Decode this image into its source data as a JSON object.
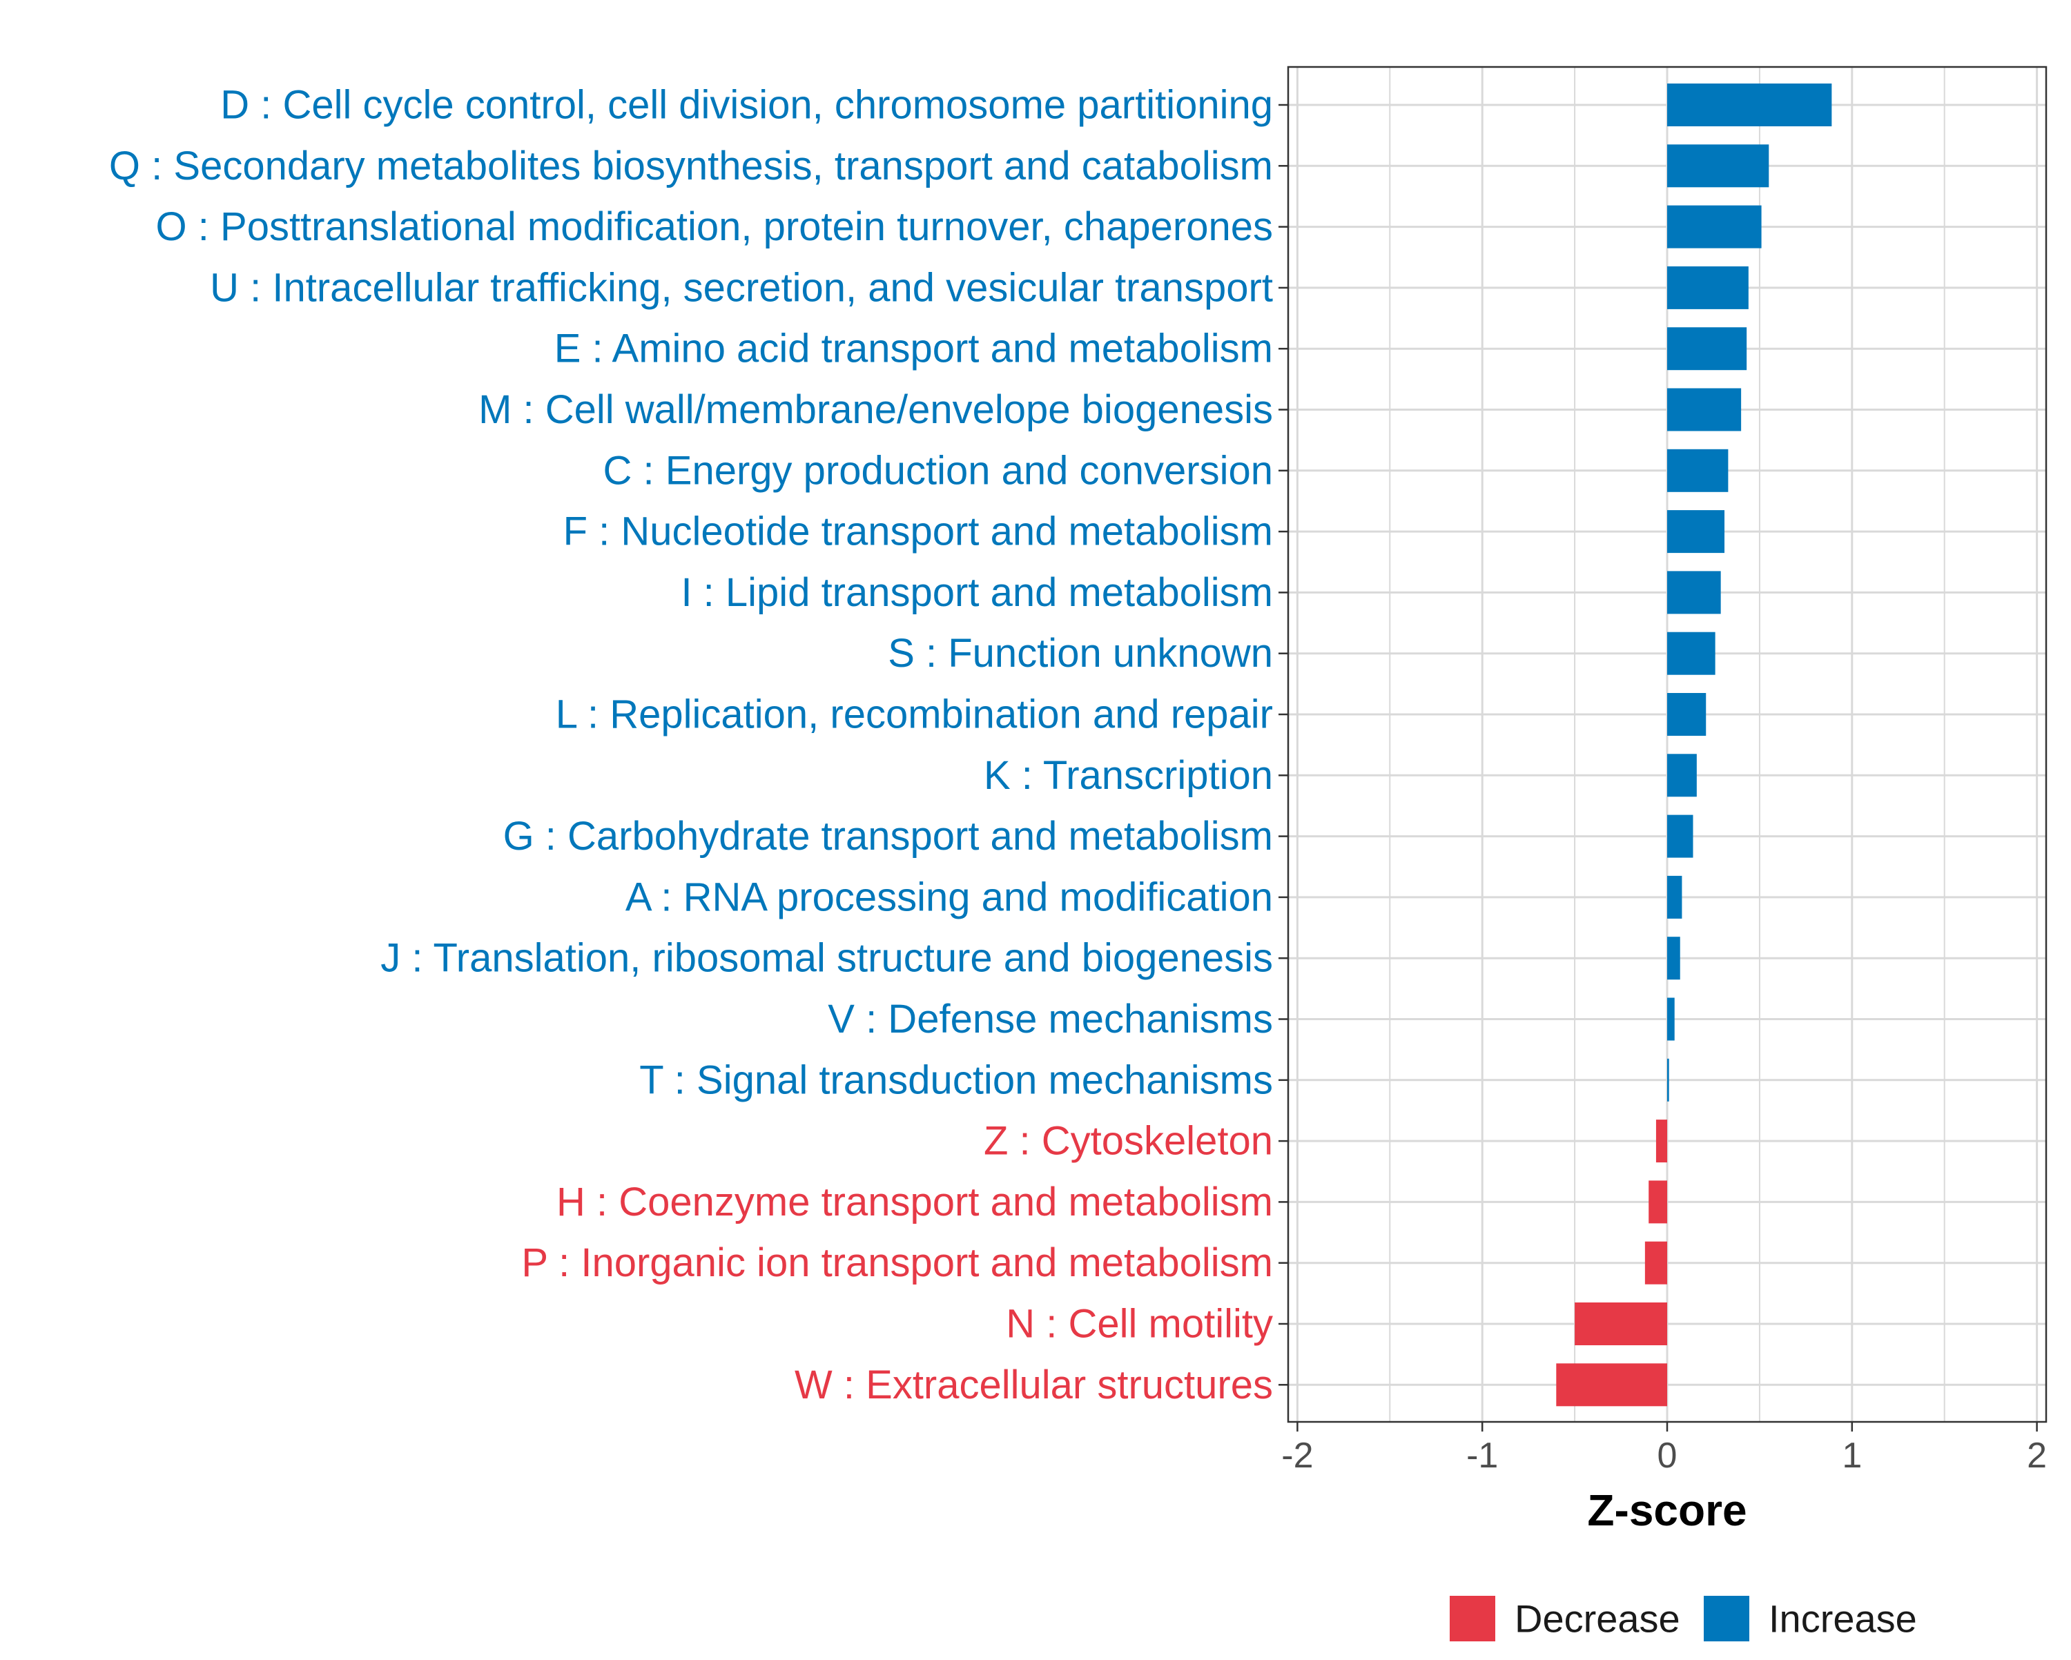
{
  "colors": {
    "increase": "#0077BB",
    "decrease": "#E63946",
    "grid": "#d9d9d9",
    "panel_border": "#333333",
    "tick": "#4d4d4d"
  },
  "chart_data": {
    "type": "bar",
    "orientation": "horizontal",
    "title": "",
    "xlabel": "Z-score",
    "ylabel": "",
    "xlim": [
      -2.05,
      2.05
    ],
    "xticks": [
      -2,
      -1,
      0,
      1,
      2
    ],
    "xtick_labels": [
      "-2",
      "-1",
      "0",
      "1",
      "2"
    ],
    "grid": true,
    "legend_position": "bottom",
    "legend": [
      {
        "label": "Decrease",
        "color": "#E63946"
      },
      {
        "label": "Increase",
        "color": "#0077BB"
      }
    ],
    "categories": [
      {
        "label": "D : Cell cycle control, cell division, chromosome partitioning",
        "value": 0.89,
        "direction": "Increase"
      },
      {
        "label": "Q : Secondary metabolites biosynthesis, transport and catabolism",
        "value": 0.55,
        "direction": "Increase"
      },
      {
        "label": "O : Posttranslational modification, protein turnover, chaperones",
        "value": 0.51,
        "direction": "Increase"
      },
      {
        "label": "U : Intracellular trafficking, secretion, and vesicular transport",
        "value": 0.44,
        "direction": "Increase"
      },
      {
        "label": "E : Amino acid transport and metabolism",
        "value": 0.43,
        "direction": "Increase"
      },
      {
        "label": "M : Cell wall/membrane/envelope biogenesis",
        "value": 0.4,
        "direction": "Increase"
      },
      {
        "label": "C : Energy production and conversion",
        "value": 0.33,
        "direction": "Increase"
      },
      {
        "label": "F : Nucleotide transport and metabolism",
        "value": 0.31,
        "direction": "Increase"
      },
      {
        "label": "I : Lipid transport and metabolism",
        "value": 0.29,
        "direction": "Increase"
      },
      {
        "label": "S : Function unknown",
        "value": 0.26,
        "direction": "Increase"
      },
      {
        "label": "L : Replication, recombination and repair",
        "value": 0.21,
        "direction": "Increase"
      },
      {
        "label": "K : Transcription",
        "value": 0.16,
        "direction": "Increase"
      },
      {
        "label": "G : Carbohydrate transport and metabolism",
        "value": 0.14,
        "direction": "Increase"
      },
      {
        "label": "A : RNA processing and modification",
        "value": 0.08,
        "direction": "Increase"
      },
      {
        "label": "J : Translation, ribosomal structure and biogenesis",
        "value": 0.07,
        "direction": "Increase"
      },
      {
        "label": "V : Defense mechanisms",
        "value": 0.04,
        "direction": "Increase"
      },
      {
        "label": "T : Signal transduction mechanisms",
        "value": 0.01,
        "direction": "Increase"
      },
      {
        "label": "Z : Cytoskeleton",
        "value": -0.06,
        "direction": "Decrease"
      },
      {
        "label": "H : Coenzyme transport and metabolism",
        "value": -0.1,
        "direction": "Decrease"
      },
      {
        "label": "P : Inorganic ion transport and metabolism",
        "value": -0.12,
        "direction": "Decrease"
      },
      {
        "label": "N : Cell motility",
        "value": -0.5,
        "direction": "Decrease"
      },
      {
        "label": "W : Extracellular structures",
        "value": -0.6,
        "direction": "Decrease"
      }
    ]
  }
}
